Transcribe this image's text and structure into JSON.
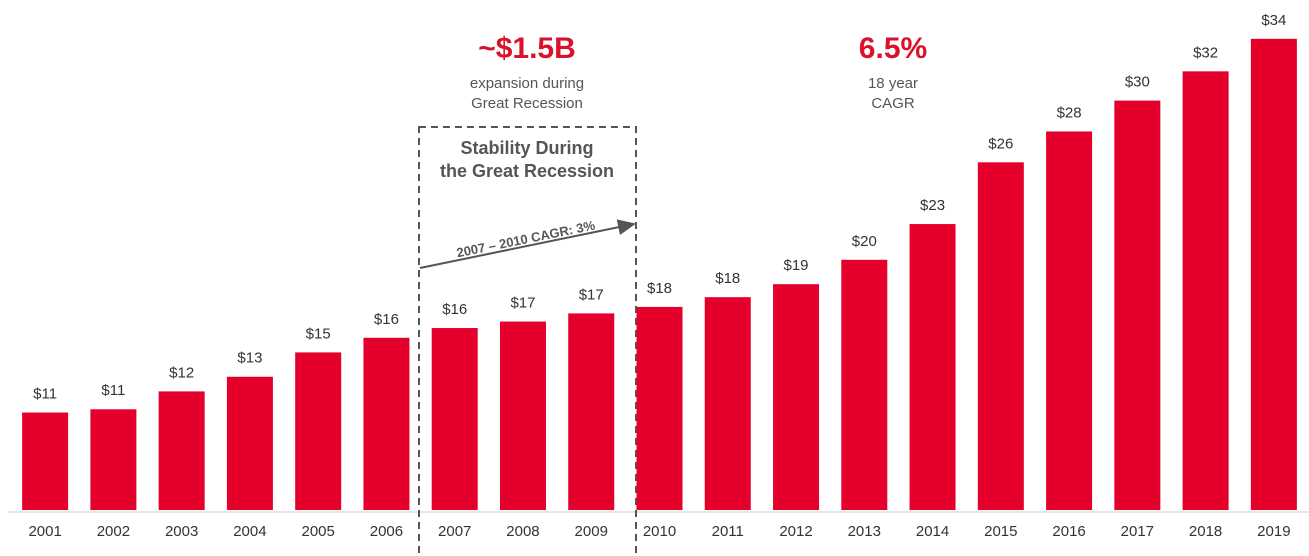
{
  "chart_data": {
    "type": "bar",
    "categories": [
      "2001",
      "2002",
      "2003",
      "2004",
      "2005",
      "2006",
      "2007",
      "2008",
      "2009",
      "2010",
      "2011",
      "2012",
      "2013",
      "2014",
      "2015",
      "2016",
      "2017",
      "2018",
      "2019"
    ],
    "values": [
      11.0,
      11.2,
      12.3,
      13.2,
      14.7,
      15.6,
      16.2,
      16.6,
      17.1,
      17.5,
      18.1,
      18.9,
      20.4,
      22.6,
      26.4,
      28.3,
      30.2,
      32.0,
      34.0
    ],
    "value_labels": [
      "$11",
      "$11",
      "$12",
      "$13",
      "$15",
      "$16",
      "$16",
      "$17",
      "$17",
      "$18",
      "$18",
      "$19",
      "$20",
      "$23",
      "$26",
      "$28",
      "$30",
      "$32",
      "$34"
    ],
    "color": "#e4002b",
    "ylim": [
      5,
      35
    ],
    "annotations": {
      "expansion_value": "~$1.5B",
      "expansion_text": [
        "expansion during",
        "Great Recession"
      ],
      "cagr_value": "6.5%",
      "cagr_text": [
        "18 year",
        "CAGR"
      ],
      "box_title": [
        "Stability During",
        "the Great Recession"
      ],
      "arrow_label": "2007 – 2010 CAGR: 3%"
    }
  }
}
